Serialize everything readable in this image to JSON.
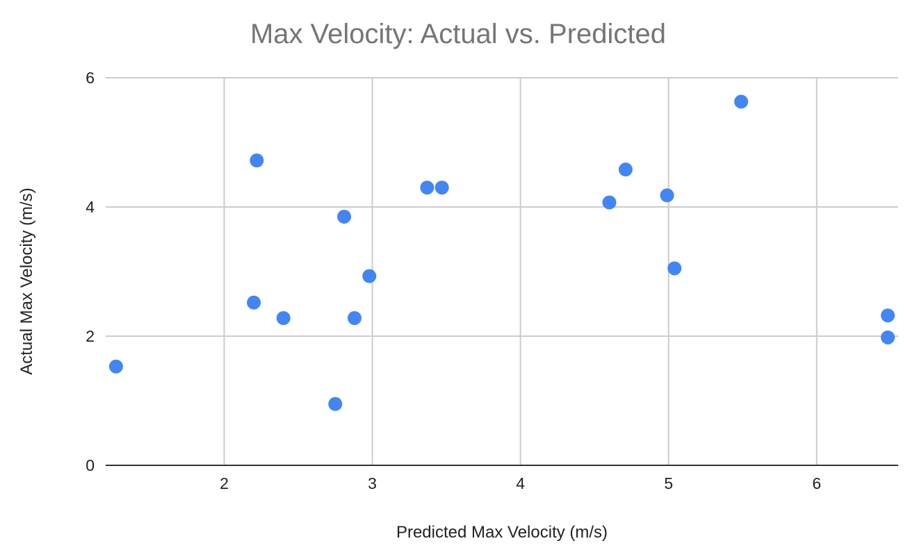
{
  "chart_data": {
    "type": "scatter",
    "title": "Max Velocity: Actual vs. Predicted",
    "xlabel": "Predicted Max Velocity (m/s)",
    "ylabel": "Actual Max Velocity (m/s)",
    "xlim": [
      1.2,
      6.55
    ],
    "ylim": [
      0,
      6
    ],
    "xticks": [
      2,
      3,
      4,
      5,
      6
    ],
    "yticks": [
      0,
      2,
      4,
      6
    ],
    "grid": true,
    "legend": "none",
    "color": "#4285f4",
    "series": [
      {
        "points": [
          {
            "x": 1.27,
            "y": 1.53
          },
          {
            "x": 2.2,
            "y": 2.52
          },
          {
            "x": 2.22,
            "y": 4.72
          },
          {
            "x": 2.4,
            "y": 2.28
          },
          {
            "x": 2.75,
            "y": 0.95
          },
          {
            "x": 2.81,
            "y": 3.85
          },
          {
            "x": 2.88,
            "y": 2.28
          },
          {
            "x": 2.98,
            "y": 2.93
          },
          {
            "x": 3.37,
            "y": 4.3
          },
          {
            "x": 3.47,
            "y": 4.3
          },
          {
            "x": 4.6,
            "y": 4.07
          },
          {
            "x": 4.71,
            "y": 4.58
          },
          {
            "x": 4.99,
            "y": 4.18
          },
          {
            "x": 5.04,
            "y": 3.05
          },
          {
            "x": 5.49,
            "y": 5.63
          },
          {
            "x": 6.48,
            "y": 2.32
          },
          {
            "x": 6.48,
            "y": 1.98
          }
        ]
      }
    ]
  }
}
